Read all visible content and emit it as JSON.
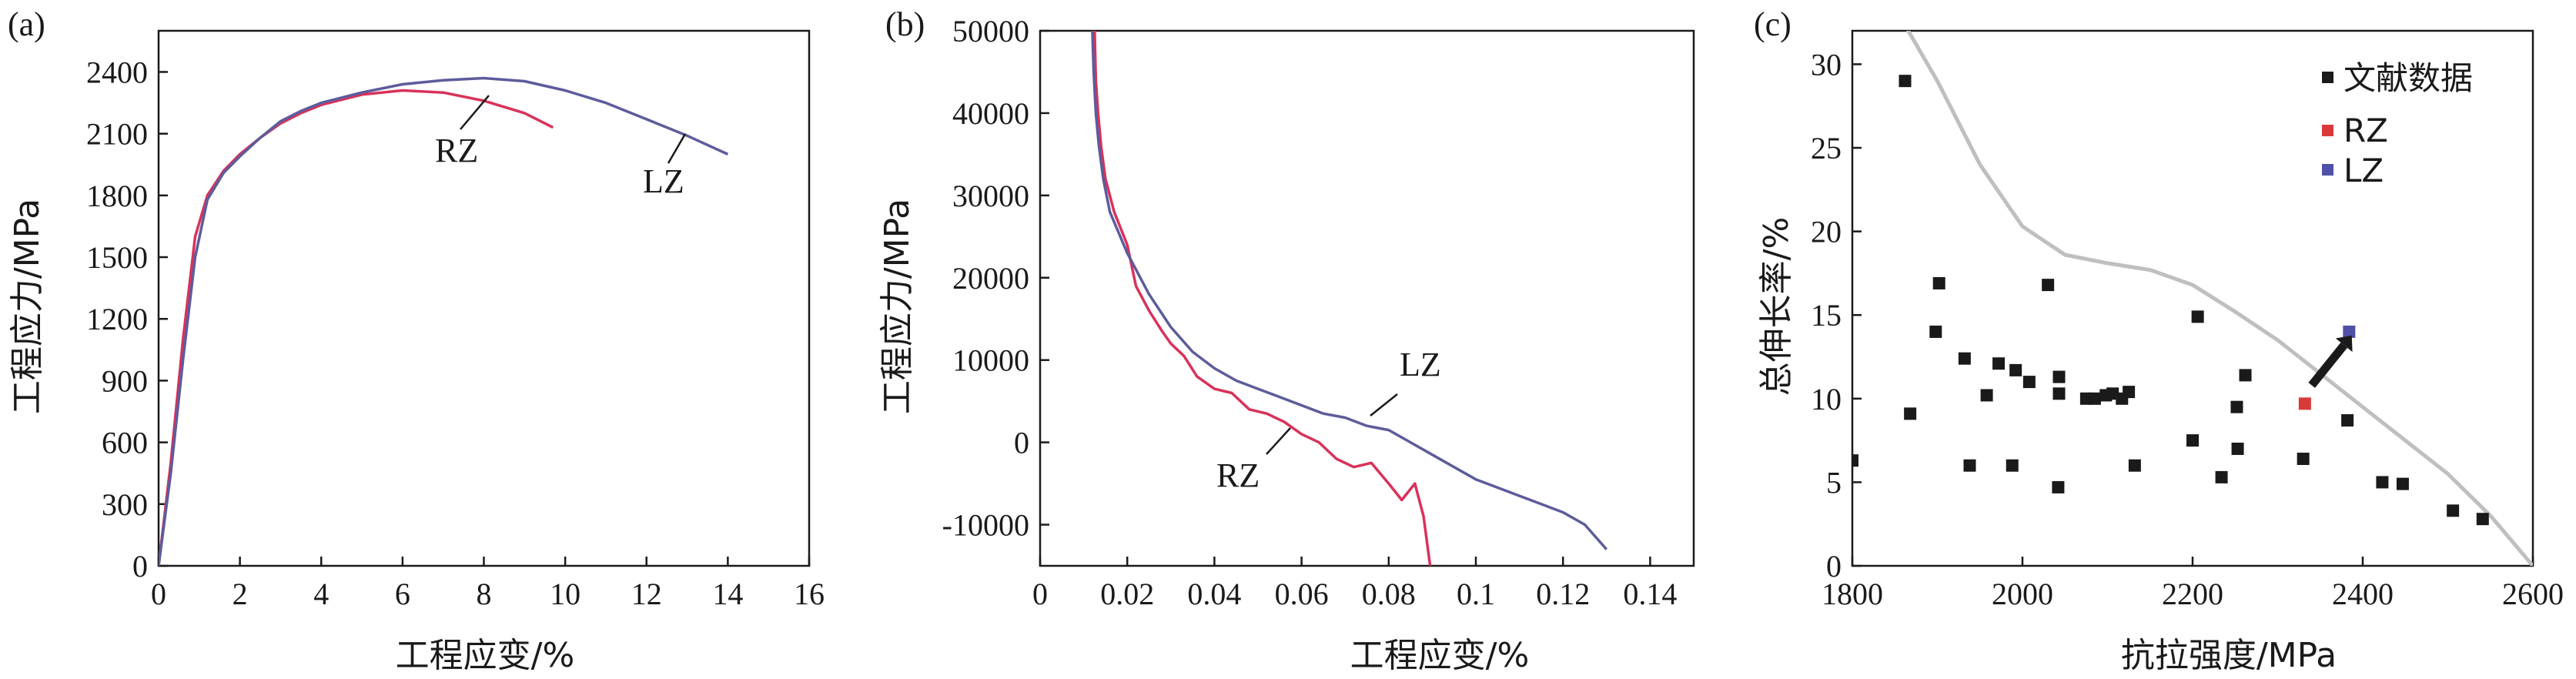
{
  "figure": {
    "panel_labels": [
      "(a)",
      "(b)",
      "(c)"
    ]
  },
  "chart_data": [
    {
      "type": "line",
      "panel": "(a)",
      "xlabel": "工程应变/%",
      "ylabel": "工程应力/MPa",
      "xlim": [
        0,
        16
      ],
      "ylim": [
        0,
        2600
      ],
      "xticks": [
        0,
        2,
        4,
        6,
        8,
        10,
        12,
        14,
        16
      ],
      "yticks": [
        0,
        300,
        600,
        900,
        1200,
        1500,
        1800,
        2100,
        2400
      ],
      "colors": {
        "RZ": "#d8325a",
        "LZ": "#5c5c9c"
      },
      "series": [
        {
          "name": "RZ",
          "x": [
            0,
            0.3,
            0.6,
            0.9,
            1.2,
            1.6,
            2.0,
            2.5,
            3.0,
            3.5,
            4.0,
            5.0,
            6.0,
            7.0,
            8.0,
            9.0,
            9.7
          ],
          "y": [
            0,
            500,
            1100,
            1600,
            1800,
            1920,
            2000,
            2080,
            2150,
            2200,
            2240,
            2290,
            2310,
            2300,
            2260,
            2200,
            2130
          ]
        },
        {
          "name": "LZ",
          "x": [
            0,
            0.3,
            0.6,
            0.9,
            1.2,
            1.6,
            2.0,
            2.5,
            3.0,
            3.5,
            4.0,
            5.0,
            6.0,
            7.0,
            8.0,
            9.0,
            10.0,
            11.0,
            12.0,
            13.0,
            14.0
          ],
          "y": [
            0,
            450,
            1000,
            1500,
            1780,
            1910,
            1990,
            2080,
            2160,
            2210,
            2250,
            2300,
            2340,
            2360,
            2370,
            2355,
            2310,
            2250,
            2170,
            2090,
            2000
          ]
        }
      ],
      "annotations": [
        "RZ",
        "LZ"
      ]
    },
    {
      "type": "line",
      "panel": "(b)",
      "xlabel": "工程应变/%",
      "ylabel": "工程应力/MPa",
      "xlim": [
        0,
        0.15
      ],
      "ylim": [
        -15000,
        50000
      ],
      "xticks": [
        0,
        0.02,
        0.04,
        0.06,
        0.08,
        0.1,
        0.12,
        0.14
      ],
      "yticks": [
        -10000,
        0,
        10000,
        20000,
        30000,
        40000,
        50000
      ],
      "colors": {
        "RZ": "#d8325a",
        "LZ": "#5c5c9c"
      },
      "series": [
        {
          "name": "RZ",
          "x": [
            0.0125,
            0.0128,
            0.0133,
            0.014,
            0.015,
            0.017,
            0.02,
            0.022,
            0.025,
            0.028,
            0.03,
            0.033,
            0.036,
            0.04,
            0.044,
            0.048,
            0.052,
            0.056,
            0.06,
            0.064,
            0.068,
            0.072,
            0.076,
            0.08,
            0.083,
            0.086,
            0.088,
            0.0895
          ],
          "y": [
            50000,
            44000,
            40000,
            36000,
            32000,
            28000,
            24000,
            19000,
            16000,
            13500,
            12000,
            10500,
            8000,
            6500,
            6000,
            4000,
            3500,
            2500,
            1000,
            0,
            -2000,
            -3000,
            -2500,
            -5000,
            -7000,
            -5000,
            -9000,
            -15000
          ]
        },
        {
          "name": "LZ",
          "x": [
            0.012,
            0.0123,
            0.0128,
            0.0135,
            0.0145,
            0.016,
            0.018,
            0.02,
            0.022,
            0.025,
            0.03,
            0.035,
            0.04,
            0.045,
            0.05,
            0.055,
            0.06,
            0.065,
            0.07,
            0.075,
            0.08,
            0.085,
            0.09,
            0.095,
            0.1,
            0.105,
            0.11,
            0.115,
            0.12,
            0.125,
            0.13
          ],
          "y": [
            50000,
            45000,
            40000,
            36000,
            32000,
            28000,
            25500,
            23000,
            21000,
            18000,
            14000,
            11000,
            9000,
            7500,
            6500,
            5500,
            4500,
            3500,
            3000,
            2000,
            1500,
            0,
            -1500,
            -3000,
            -4500,
            -5500,
            -6500,
            -7500,
            -8500,
            -10000,
            -13000
          ]
        }
      ],
      "annotations": [
        "LZ",
        "RZ"
      ]
    },
    {
      "type": "scatter",
      "panel": "(c)",
      "xlabel": "抗拉强度/MPa",
      "ylabel": "总伸长率/%",
      "xlim": [
        1800,
        2600
      ],
      "ylim": [
        0,
        32
      ],
      "xticks": [
        1800,
        2000,
        2200,
        2400,
        2600
      ],
      "yticks": [
        0,
        5,
        10,
        15,
        20,
        25,
        30
      ],
      "legend_position": "top-right",
      "colors": {
        "文献数据": "#1a1a1a",
        "RZ": "#d83a3a",
        "LZ": "#5050a8",
        "trend": "#bfbfbf",
        "arrow": "#1a1a1a"
      },
      "series": [
        {
          "name": "文献数据",
          "points": [
            [
              1800,
              6.3
            ],
            [
              1862,
              29
            ],
            [
              1868,
              9.1
            ],
            [
              1898,
              14
            ],
            [
              1902,
              16.9
            ],
            [
              1932,
              12.4
            ],
            [
              1938,
              6
            ],
            [
              1958,
              10.2
            ],
            [
              1972,
              12.1
            ],
            [
              1988,
              6
            ],
            [
              1992,
              11.7
            ],
            [
              2008,
              11
            ],
            [
              2030,
              16.8
            ],
            [
              2043,
              11.3
            ],
            [
              2043,
              10.3
            ],
            [
              2042,
              4.7
            ],
            [
              2075,
              10
            ],
            [
              2085,
              10
            ],
            [
              2098,
              10.2
            ],
            [
              2106,
              10.3
            ],
            [
              2117,
              10
            ],
            [
              2125,
              10.4
            ],
            [
              2132,
              6
            ],
            [
              2200,
              7.5
            ],
            [
              2206,
              14.9
            ],
            [
              2234,
              5.3
            ],
            [
              2252,
              9.5
            ],
            [
              2253,
              7
            ],
            [
              2262,
              11.4
            ],
            [
              2330,
              6.4
            ],
            [
              2382,
              8.7
            ],
            [
              2423,
              5
            ],
            [
              2447,
              4.9
            ],
            [
              2506,
              3.3
            ],
            [
              2541,
              2.8
            ]
          ]
        },
        {
          "name": "RZ",
          "points": [
            [
              2332,
              9.7
            ]
          ]
        },
        {
          "name": "LZ",
          "points": [
            [
              2384,
              14
            ]
          ]
        }
      ],
      "trend_line": {
        "x": [
          1860,
          1900,
          1950,
          2000,
          2050,
          2100,
          2150,
          2200,
          2250,
          2300,
          2350,
          2400,
          2450,
          2500,
          2550,
          2600
        ],
        "y": [
          32.5,
          29,
          24,
          20.3,
          18.6,
          18.1,
          17.7,
          16.8,
          15.2,
          13.5,
          11.5,
          9.5,
          7.5,
          5.5,
          3,
          0
        ]
      },
      "arrow": {
        "from": [
          2340,
          10.8
        ],
        "to": [
          2378,
          13.2
        ]
      }
    }
  ]
}
